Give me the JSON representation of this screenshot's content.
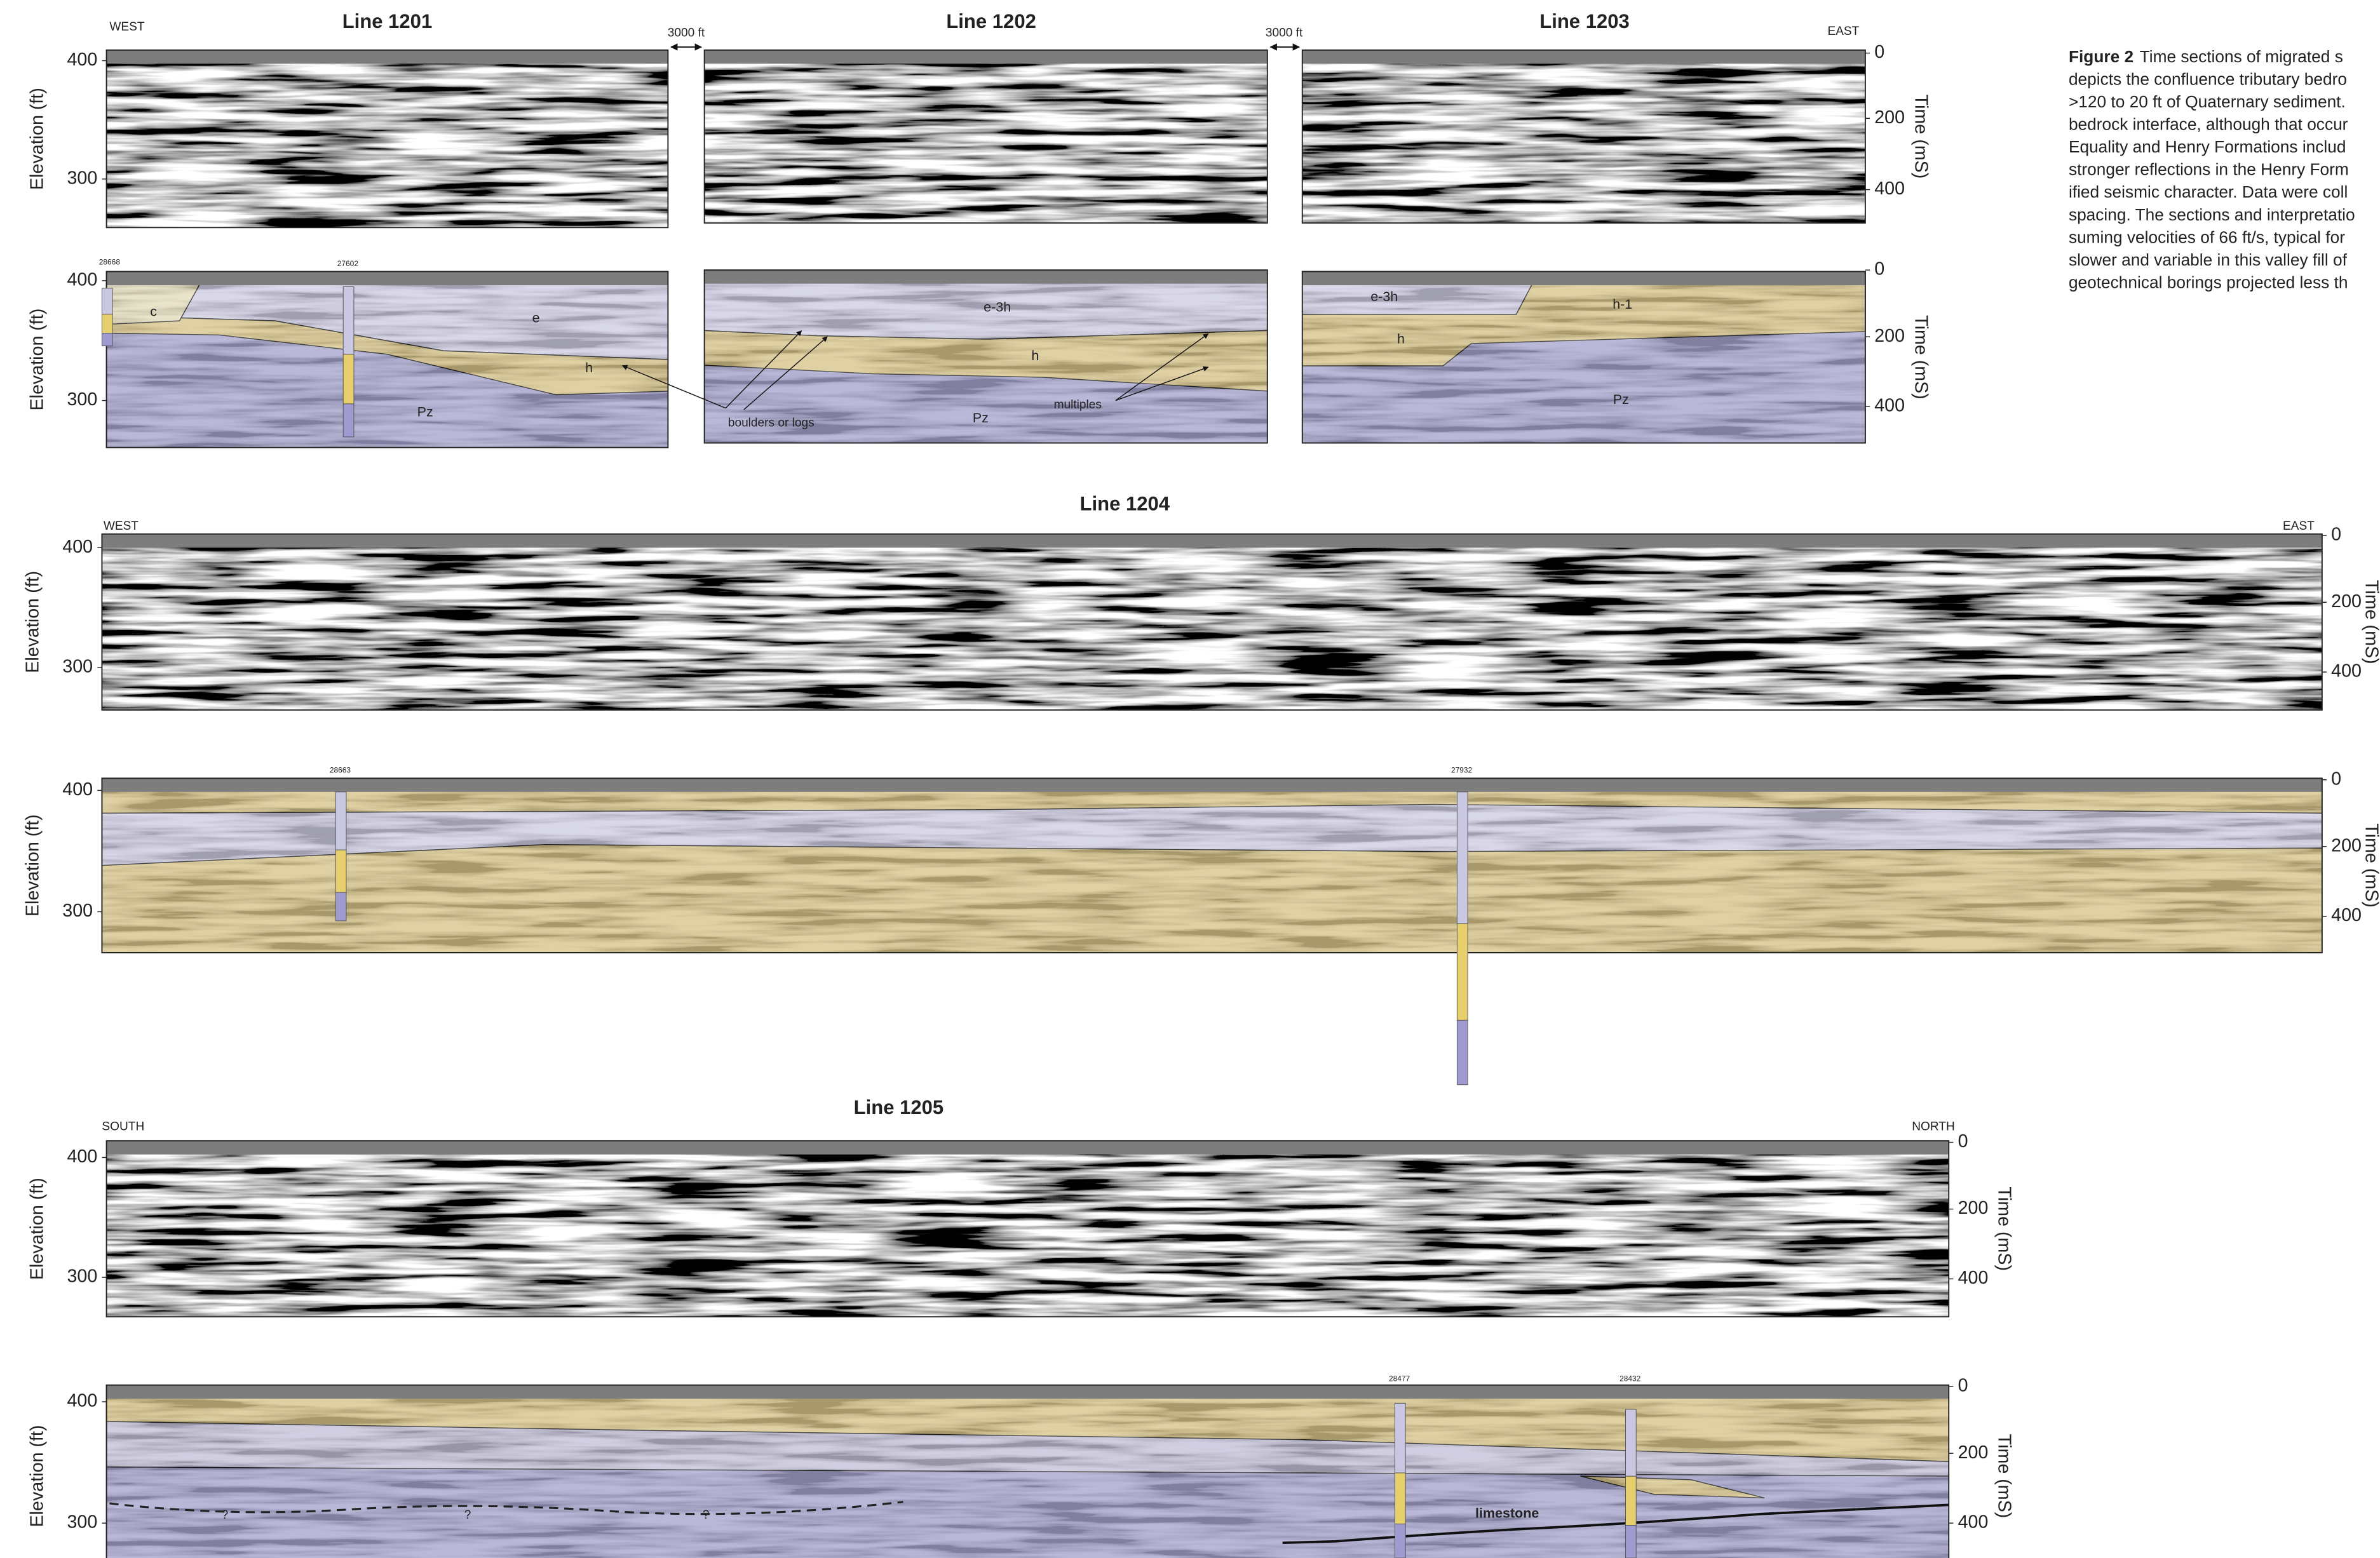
{
  "caption": {
    "label": "Figure 2",
    "lines": [
      "Time sections of migrated s",
      "depicts the confluence tributary bedro",
      ">120 to 20 ft of Quaternary sediment.",
      "bedrock interface, although that occur",
      "Equality and Henry Formations includ",
      "stronger reflections in the Henry Form",
      "ified seismic character. Data were coll",
      "spacing. The sections and interpretatio",
      "suming velocities of 66 ft/s, typical for",
      "slower and variable in this valley fill of",
      "geotechnical borings projected less th"
    ]
  },
  "axes": {
    "elevation_label": "Elevation (ft)",
    "time_label": "Time (mS)",
    "elevation_ticks": [
      400,
      300
    ],
    "time_ticks": [
      0,
      200,
      400
    ]
  },
  "scale_bar": "3000 ft",
  "sections": [
    {
      "title": "Line 1201",
      "start": "WEST",
      "units": [
        "c",
        "e",
        "h",
        "Pz"
      ],
      "borings": [
        "28668",
        "27602"
      ]
    },
    {
      "title": "Line 1202",
      "units": [
        "e-3h",
        "h",
        "Pz"
      ],
      "annotations": [
        "boulders or logs",
        "multiples"
      ]
    },
    {
      "title": "Line 1203",
      "end": "EAST",
      "units": [
        "e-3h",
        "h-1",
        "h",
        "Pz"
      ]
    },
    {
      "title": "Line 1204",
      "start": "WEST",
      "end": "EAST",
      "borings": [
        "28663",
        "27932"
      ]
    },
    {
      "title": "Line 1205",
      "start": "SOUTH",
      "end": "NORTH",
      "borings": [
        "28477",
        "28432"
      ],
      "annotations": [
        "limestone",
        "?"
      ]
    }
  ]
}
